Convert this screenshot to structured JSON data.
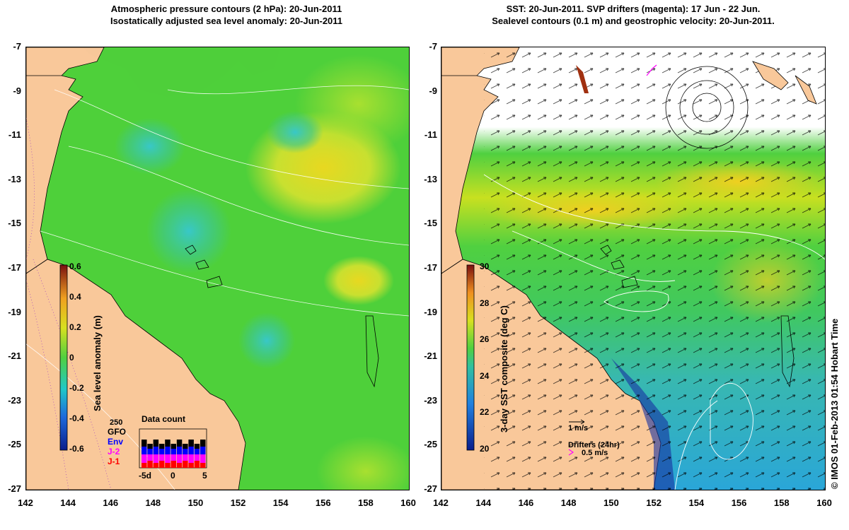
{
  "left_panel": {
    "title_line1": "Atmospheric pressure contours (2 hPa): 20-Jun-2011",
    "title_line2": "Isostatically adjusted sea level anomaly: 20-Jun-2011",
    "y_ticks": [
      "-7",
      "-9",
      "-11",
      "-13",
      "-15",
      "-17",
      "-19",
      "-21",
      "-23",
      "-25",
      "-27"
    ],
    "x_ticks": [
      "142",
      "144",
      "146",
      "148",
      "150",
      "152",
      "154",
      "156",
      "158",
      "160"
    ],
    "colorbar": {
      "label": "Sea level anomaly (m)",
      "ticks": [
        "0.6",
        "0.4",
        "0.2",
        "0",
        "-0.2",
        "-0.4",
        "-0.6"
      ]
    },
    "data_count": {
      "title": "Data count",
      "legend": [
        {
          "label": "GFO",
          "color": "#000000"
        },
        {
          "label": "Env",
          "color": "#0000ff"
        },
        {
          "label": "J-2",
          "color": "#ff00ff"
        },
        {
          "label": "J-1",
          "color": "#ff0000"
        }
      ],
      "scale_label": "250",
      "x_ticks": [
        "-5d",
        "0",
        "5"
      ]
    }
  },
  "right_panel": {
    "title_line1": "SST: 20-Jun-2011. SVP drifters (magenta): 17 Jun - 22 Jun.",
    "title_line2": "Sealevel contours (0.1 m) and geostrophic velocity: 20-Jun-2011.",
    "y_ticks": [
      "-7",
      "-9",
      "-11",
      "-13",
      "-15",
      "-17",
      "-19",
      "-21",
      "-23",
      "-25",
      "-27"
    ],
    "x_ticks": [
      "142",
      "144",
      "146",
      "148",
      "150",
      "152",
      "154",
      "156",
      "158",
      "160"
    ],
    "colorbar": {
      "label": "3-day SST composite (deg C)",
      "ticks": [
        "30",
        "28",
        "26",
        "24",
        "22",
        "20"
      ]
    },
    "velocity_scale": "1 m/s",
    "drifters_label": "Drifters (24hr)",
    "drifters_scale": "0.5 m/s"
  },
  "credit": "© IMOS 01-Feb-2013 01:54 Hobart Time",
  "colors": {
    "land": "#f9c89a",
    "ocean_green": "#4ed03a",
    "sst_blue": "#2aa6d8",
    "drifter": "#ff00ff"
  }
}
